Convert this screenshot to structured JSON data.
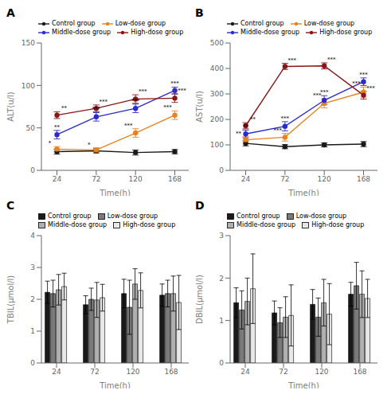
{
  "chart_data": [
    {
      "type": "line",
      "title": "A",
      "x_label": "Time(h)",
      "y_label": "ALT(u/l)",
      "x": [
        24,
        72,
        120,
        168
      ],
      "xlim": [
        5,
        185
      ],
      "xticks": [
        24,
        72,
        120,
        168
      ],
      "ylim": [
        0,
        150
      ],
      "yticks": [
        0,
        50,
        100,
        150
      ],
      "grid": false,
      "legend": "upper left",
      "marker": "circle",
      "series": [
        {
          "name": "Control group",
          "color": "#1a1a1a",
          "values": [
            22,
            23,
            21,
            22
          ],
          "errors": [
            3,
            2.5,
            3,
            2.5
          ]
        },
        {
          "name": "Low-dose group",
          "color": "#e8821e",
          "values": [
            25,
            24,
            44,
            65
          ],
          "errors": [
            3,
            2.5,
            5,
            5
          ],
          "annotations": [
            "*",
            "*",
            "***",
            "***"
          ]
        },
        {
          "name": "Middle-dose group",
          "color": "#2b2bc8",
          "values": [
            42,
            63,
            73,
            94
          ],
          "errors": [
            5,
            5,
            5,
            4
          ],
          "annotations": [
            "**",
            "***",
            "***",
            "***"
          ]
        },
        {
          "name": "High-dose group",
          "color": "#8b1515",
          "values": [
            65,
            73,
            84,
            85
          ],
          "errors": [
            4,
            4,
            5,
            5
          ],
          "annotations": [
            "**",
            "***",
            "***",
            "***"
          ]
        }
      ]
    },
    {
      "type": "line",
      "title": "B",
      "x_label": "Time(h)",
      "y_label": "AST(u/l)",
      "x": [
        24,
        72,
        120,
        168
      ],
      "xlim": [
        5,
        185
      ],
      "xticks": [
        24,
        72,
        120,
        168
      ],
      "ylim": [
        0,
        500
      ],
      "yticks": [
        0,
        100,
        200,
        300,
        400,
        500
      ],
      "grid": false,
      "legend": "upper left",
      "marker": "circle",
      "series": [
        {
          "name": "Control group",
          "color": "#1a1a1a",
          "values": [
            106,
            93,
            100,
            103
          ],
          "errors": [
            10,
            8,
            8,
            10
          ]
        },
        {
          "name": "Low-dose group",
          "color": "#e8821e",
          "values": [
            120,
            130,
            263,
            307
          ],
          "errors": [
            12,
            15,
            18,
            20
          ],
          "annotations": [
            "**",
            "***",
            "***",
            "***"
          ]
        },
        {
          "name": "Middle-dose group",
          "color": "#2b2bc8",
          "values": [
            143,
            173,
            275,
            348
          ],
          "errors": [
            15,
            18,
            18,
            15
          ],
          "annotations": [
            "**",
            "***",
            "***",
            "***"
          ]
        },
        {
          "name": "High-dose group",
          "color": "#8b1515",
          "values": [
            175,
            408,
            410,
            295
          ],
          "errors": [
            12,
            12,
            12,
            15
          ],
          "annotations": [
            "**",
            "***",
            "***",
            "***"
          ]
        }
      ]
    },
    {
      "type": "bar",
      "title": "C",
      "x_label": "Time(h)",
      "y_label": "TBIL(μmol/l)",
      "x": [
        24,
        72,
        120,
        168
      ],
      "xlim": [
        5,
        190
      ],
      "xticks": [
        24,
        72,
        120,
        168
      ],
      "ylim": [
        0,
        4
      ],
      "yticks": [
        0,
        1,
        2,
        3,
        4
      ],
      "grid": false,
      "legend": "upper left",
      "series": [
        {
          "name": "Control group",
          "color": "#1a1a1a",
          "values": [
            2.22,
            1.83,
            2.18,
            2.13
          ],
          "errors": [
            0.35,
            0.28,
            0.45,
            0.35
          ]
        },
        {
          "name": "Low-dose group",
          "color": "#7a7a7a",
          "values": [
            2.18,
            2.0,
            1.75,
            2.18
          ],
          "errors": [
            0.42,
            0.35,
            0.85,
            0.42
          ]
        },
        {
          "name": "Middle-dose group",
          "color": "#b0b0b0",
          "values": [
            2.3,
            1.98,
            2.48,
            2.18
          ],
          "errors": [
            0.48,
            0.55,
            0.48,
            0.55
          ]
        },
        {
          "name": "High-dose group",
          "color": "#e8e8e8",
          "values": [
            2.4,
            2.05,
            2.28,
            1.9
          ],
          "errors": [
            0.42,
            0.42,
            0.55,
            0.85
          ]
        }
      ]
    },
    {
      "type": "bar",
      "title": "D",
      "x_label": "Time(h)",
      "y_label": "DBIL(μmol/l)",
      "x": [
        24,
        72,
        120,
        168
      ],
      "xlim": [
        5,
        190
      ],
      "xticks": [
        24,
        72,
        120,
        168
      ],
      "ylim": [
        0,
        3
      ],
      "yticks": [
        0,
        1,
        2,
        3
      ],
      "grid": false,
      "legend": "upper left",
      "series": [
        {
          "name": "Control group",
          "color": "#1a1a1a",
          "values": [
            1.42,
            1.18,
            1.38,
            1.62
          ],
          "errors": [
            0.35,
            0.28,
            0.35,
            0.28
          ]
        },
        {
          "name": "Low-dose group",
          "color": "#7a7a7a",
          "values": [
            1.25,
            0.95,
            1.08,
            1.82
          ],
          "errors": [
            0.45,
            0.35,
            0.45,
            0.55
          ]
        },
        {
          "name": "Middle-dose group",
          "color": "#b0b0b0",
          "values": [
            1.45,
            1.08,
            1.42,
            1.62
          ],
          "errors": [
            0.55,
            0.48,
            0.55,
            0.55
          ]
        },
        {
          "name": "High-dose group",
          "color": "#e8e8e8",
          "values": [
            1.75,
            1.12,
            1.15,
            1.52
          ],
          "errors": [
            0.82,
            0.72,
            0.72,
            0.45
          ]
        }
      ]
    }
  ]
}
